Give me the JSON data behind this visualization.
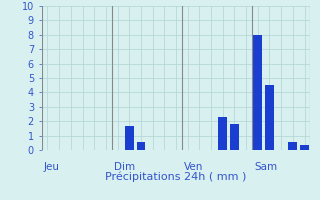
{
  "xlabel": "Précipitations 24h ( mm )",
  "background_color": "#d8f0f0",
  "bar_color": "#1a3ecf",
  "ylim": [
    0,
    10
  ],
  "yticks": [
    0,
    1,
    2,
    3,
    4,
    5,
    6,
    7,
    8,
    9,
    10
  ],
  "day_labels": [
    "Jeu",
    "Dim",
    "Ven",
    "Sam"
  ],
  "bar_heights": [
    0,
    0,
    0,
    0,
    0,
    0,
    0,
    1.65,
    0.55,
    0,
    0,
    0,
    0,
    0,
    0,
    2.3,
    1.8,
    0,
    8.0,
    4.5,
    0,
    0.55,
    0.35
  ],
  "n_bars": 23,
  "sep_indices": [
    0,
    6,
    12,
    18,
    23
  ],
  "day_label_indices": [
    0,
    6,
    12,
    18
  ],
  "grid_color": "#b0d4d4",
  "tick_color": "#3355cc",
  "label_color": "#3355cc",
  "sep_color": "#888888",
  "xlabel_fontsize": 8,
  "ytick_fontsize": 7,
  "day_label_fontsize": 7.5
}
